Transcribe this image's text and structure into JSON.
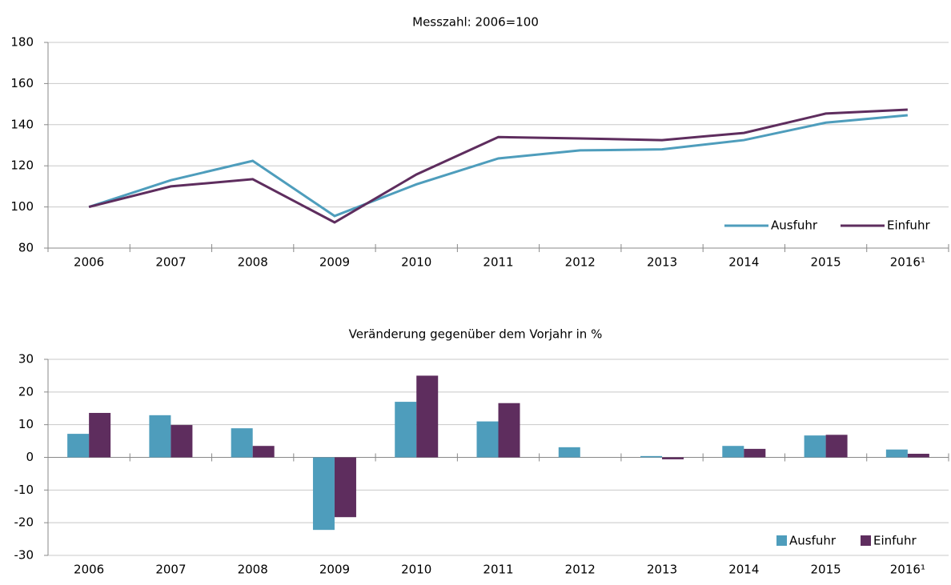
{
  "chart_data": [
    {
      "type": "line",
      "title": "Messzahl: 2006=100",
      "categories": [
        "2006",
        "2007",
        "2008",
        "2009",
        "2010",
        "2011",
        "2012",
        "2013",
        "2014",
        "2015",
        "2016¹"
      ],
      "series": [
        {
          "name": "Ausfuhr",
          "color": "#4e9dbc",
          "values": [
            100,
            113,
            122.4,
            95.6,
            111,
            123.6,
            127.5,
            128,
            132.5,
            141,
            144.6
          ]
        },
        {
          "name": "Einfuhr",
          "color": "#5e2d5e",
          "values": [
            100,
            110,
            113.5,
            92.5,
            115.8,
            134,
            133.3,
            132.5,
            136,
            145.4,
            147.3
          ]
        }
      ],
      "ylim": [
        80,
        180
      ],
      "yticks": [
        80,
        100,
        120,
        140,
        160,
        180
      ],
      "grid": true,
      "legend": "lower right"
    },
    {
      "type": "bar",
      "title": "Veränderung gegenüber dem Vorjahr in %",
      "categories": [
        "2006",
        "2007",
        "2008",
        "2009",
        "2010",
        "2011",
        "2012",
        "2013",
        "2014",
        "2015",
        "2016¹"
      ],
      "series": [
        {
          "name": "Ausfuhr",
          "color": "#4e9dbc",
          "values": [
            7.2,
            12.9,
            8.9,
            -22.2,
            17,
            11,
            3.1,
            0.4,
            3.5,
            6.7,
            2.4
          ]
        },
        {
          "name": "Einfuhr",
          "color": "#5e2d5e",
          "values": [
            13.6,
            9.9,
            3.5,
            -18.3,
            25,
            16.6,
            0,
            -0.6,
            2.6,
            6.9,
            1.1
          ]
        }
      ],
      "ylim": [
        -30,
        30
      ],
      "yticks": [
        -30,
        -20,
        -10,
        0,
        10,
        20,
        30
      ],
      "grid": true,
      "legend": "lower right"
    }
  ]
}
